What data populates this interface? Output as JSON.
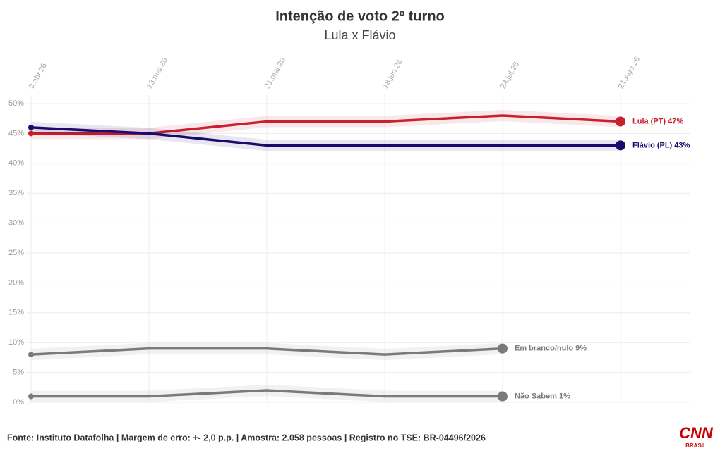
{
  "chart_data": {
    "type": "line",
    "title": "Intenção de voto 2º turno",
    "subtitle": "Lula x Flávio",
    "source": "Fonte: Instituto Datafolha | Margem de erro: +- 2,0 p.p. | Amostra: 2.058 pessoas | Registro no TSE: BR-04496/2026",
    "logo": "CNN",
    "logo_sub": "BRASIL",
    "categories": [
      "9.abr.26",
      "13.mai.26",
      "21.mai.26",
      "18.jun.26",
      "24.jul.26",
      "21.Ago.26"
    ],
    "series": [
      {
        "name": "Lula (PT) 47%",
        "color": "#c8202f",
        "values": [
          45,
          45,
          47,
          47,
          48,
          47
        ]
      },
      {
        "name": "Flávio (PL) 43%",
        "color": "#1a0a6e",
        "values": [
          46,
          45,
          43,
          43,
          43,
          43
        ]
      },
      {
        "name": "Em branco/nulo 9%",
        "color": "#7a7a7a",
        "values": [
          8,
          9,
          9,
          8,
          9,
          null
        ]
      },
      {
        "name": "Não Sabem 1%",
        "color": "#7a7a7a",
        "values": [
          1,
          1,
          2,
          1,
          1,
          null
        ]
      }
    ],
    "ylim": [
      0,
      50
    ],
    "yticks": [
      {
        "value": 0,
        "label": "0%"
      },
      {
        "value": 5,
        "label": "5%"
      },
      {
        "value": 10,
        "label": "10%"
      },
      {
        "value": 15,
        "label": "15%"
      },
      {
        "value": 20,
        "label": "20%"
      },
      {
        "value": 25,
        "label": "25%"
      },
      {
        "value": 30,
        "label": "30%"
      },
      {
        "value": 35,
        "label": "35%"
      },
      {
        "value": 40,
        "label": "40%"
      },
      {
        "value": 45,
        "label": "45%"
      },
      {
        "value": 50,
        "label": "50%"
      }
    ],
    "grid": true
  }
}
